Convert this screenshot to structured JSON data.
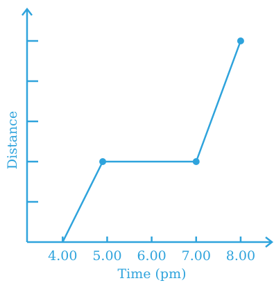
{
  "chart_data": {
    "type": "line",
    "xlabel": "Time (pm)",
    "ylabel": "Distance",
    "x_tick_labels": [
      "4.00",
      "5.00",
      "6.00",
      "7.00",
      "8.00"
    ],
    "x_ticks": [
      4,
      5,
      6,
      7,
      8
    ],
    "xlim": [
      3.2,
      8.5
    ],
    "y_tick_count": 5,
    "ylim": [
      0,
      5.5
    ],
    "series": [
      {
        "points": [
          {
            "x": 4.0,
            "y": 0
          },
          {
            "x": 4.9,
            "y": 2
          },
          {
            "x": 7.0,
            "y": 2
          },
          {
            "x": 8.0,
            "y": 5
          }
        ],
        "markers_at": [
          1,
          2,
          3
        ]
      }
    ],
    "grid": false,
    "color": "#2ea3dc"
  }
}
